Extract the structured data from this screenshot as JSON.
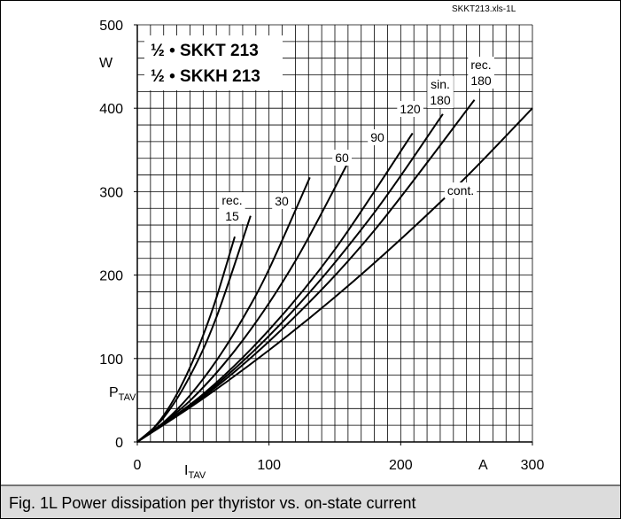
{
  "chart_data": {
    "type": "line",
    "file_tag": "SKKT213.xls-1L",
    "caption": "Fig. 1L Power dissipation per thyristor vs. on-state current",
    "legend_lines": [
      "½ • SKKT 213",
      "½ • SKKH 213"
    ],
    "xlabel": "I",
    "xlabel_sub": "TAV",
    "xunit": "A",
    "ylabel": "P",
    "ylabel_sub": "TAV",
    "yunit": "W",
    "xlim": [
      0,
      300
    ],
    "ylim": [
      0,
      500
    ],
    "xticks": [
      0,
      100,
      200,
      300
    ],
    "yticks": [
      0,
      100,
      200,
      300,
      400,
      500
    ],
    "xgrid": [
      0,
      10,
      20,
      30,
      40,
      50,
      60,
      70,
      80,
      90,
      100,
      110,
      120,
      130,
      140,
      150,
      160,
      170,
      180,
      190,
      200,
      210,
      220,
      230,
      240,
      250,
      260,
      270,
      280,
      290,
      300
    ],
    "ygrid": [
      0,
      20,
      40,
      60,
      80,
      100,
      120,
      140,
      160,
      180,
      200,
      220,
      240,
      260,
      280,
      300,
      320,
      340,
      360,
      380,
      400,
      420,
      440,
      460,
      480,
      500
    ],
    "grid": true,
    "color": "#000000",
    "series": [
      {
        "name": "rec. 15",
        "x": [
          0,
          10,
          20,
          30,
          40,
          50,
          60,
          74
        ],
        "values": [
          0,
          12.7,
          31.8,
          57.4,
          89.4,
          127.8,
          172.6,
          246
        ]
      },
      {
        "name": "30",
        "x": [
          0,
          20,
          40,
          60,
          86
        ],
        "values": [
          0,
          29.2,
          79,
          149.2,
          271
        ]
      },
      {
        "name": "60",
        "x": [
          0,
          20,
          40,
          60,
          80,
          100,
          131
        ],
        "values": [
          0,
          23.5,
          55.9,
          97.3,
          147.7,
          207,
          317
        ]
      },
      {
        "name": "90",
        "x": [
          0,
          40,
          80,
          120,
          161
        ],
        "values": [
          0,
          49.4,
          121.7,
          216.8,
          338
        ]
      },
      {
        "name": "120",
        "x": [
          0,
          50,
          100,
          150,
          209
        ],
        "values": [
          0,
          57.3,
          134.2,
          230.7,
          370
        ]
      },
      {
        "name": "sin. 180",
        "x": [
          0,
          60,
          120,
          180,
          232
        ],
        "values": [
          0,
          68.6,
          160.2,
          275,
          393
        ]
      },
      {
        "name": "rec. 180",
        "x": [
          0,
          60,
          120,
          180,
          256
        ],
        "values": [
          0,
          66.2,
          150.7,
          253.6,
          410
        ]
      },
      {
        "name": "cont.",
        "x": [
          0,
          50,
          100,
          150,
          200,
          250,
          300
        ],
        "values": [
          0,
          52.1,
          110,
          173.6,
          243,
          318,
          400
        ]
      }
    ]
  }
}
